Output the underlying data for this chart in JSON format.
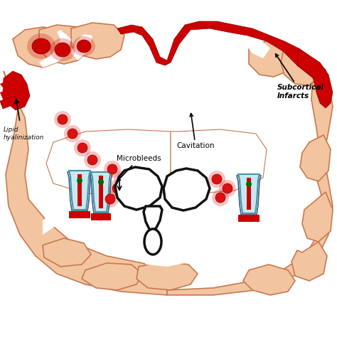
{
  "bg_color": "#ffffff",
  "brain_fill": "#f2c5a0",
  "brain_inner": "#f8dcc8",
  "brain_outline": "#c87850",
  "sulci_color": "#c87850",
  "red_infarct": "#cc0000",
  "microblee_color": "#dd1111",
  "vessel_blue": "#c8e8f0",
  "vessel_outline": "#5090a8",
  "text_color": "#111111",
  "figsize": [
    4.74,
    4.74
  ],
  "dpi": 100,
  "labels": {
    "subcortical": "Subcortical\nInfarcts",
    "cavitation": "Cavitation",
    "microbleeds": "Microbleeds",
    "lipid": "Lipid\nhyalinization"
  }
}
